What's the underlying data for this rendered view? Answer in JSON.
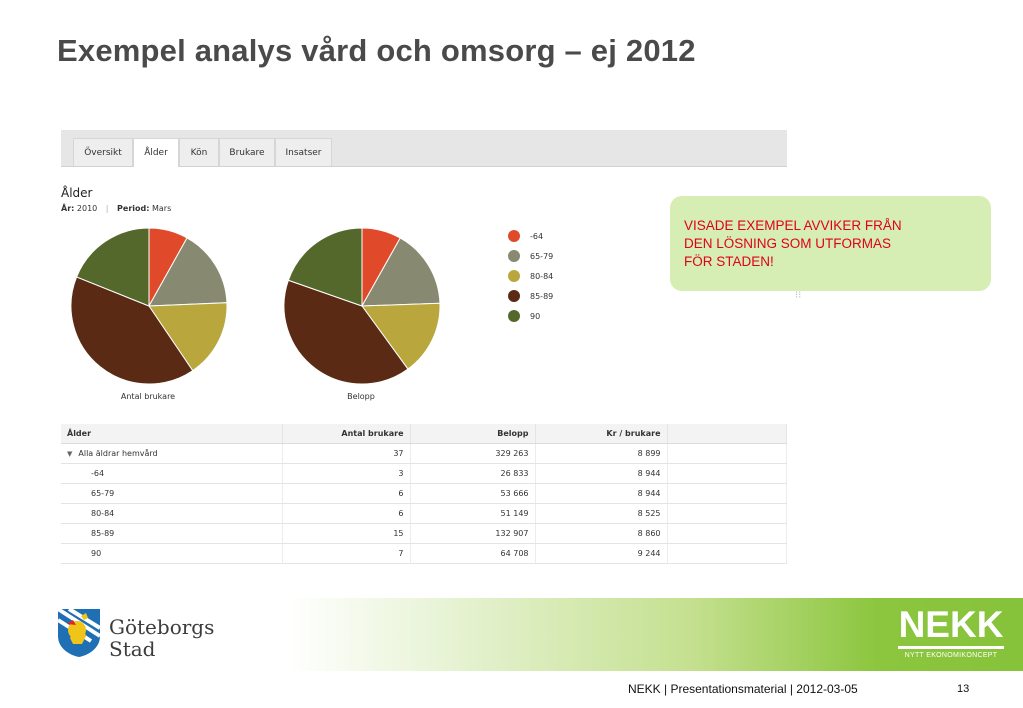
{
  "slide": {
    "title": "Exempel analys vård och omsorg – ej 2012"
  },
  "app": {
    "tabs": [
      {
        "label": "Översikt",
        "active": false
      },
      {
        "label": "Ålder",
        "active": true
      },
      {
        "label": "Kön",
        "active": false
      },
      {
        "label": "Brukare",
        "active": false
      },
      {
        "label": "Insatser",
        "active": false
      }
    ],
    "section_title": "Ålder",
    "meta": {
      "year_label": "År:",
      "year_value": "2010",
      "separator": "|",
      "period_label": "Period:",
      "period_value": "Mars"
    },
    "pie_captions": [
      "Antal brukare",
      "Belopp"
    ],
    "legend": [
      {
        "label": "-64",
        "color": "#e04a2a"
      },
      {
        "label": "65-79",
        "color": "#878a70"
      },
      {
        "label": "80-84",
        "color": "#b9a73d"
      },
      {
        "label": "85-89",
        "color": "#5a2a14"
      },
      {
        "label": "90",
        "color": "#55682b"
      }
    ],
    "table": {
      "headers": [
        "Ålder",
        "Antal brukare",
        "Belopp",
        "Kr / brukare"
      ],
      "total_row": {
        "label": "Alla äldrar hemvård",
        "antal": "37",
        "belopp": "329 263",
        "kr": "8 899"
      },
      "rows": [
        {
          "label": "-64",
          "antal": "3",
          "belopp": "26 833",
          "kr": "8 944"
        },
        {
          "label": "65-79",
          "antal": "6",
          "belopp": "53 666",
          "kr": "8 944"
        },
        {
          "label": "80-84",
          "antal": "6",
          "belopp": "51 149",
          "kr": "8 525"
        },
        {
          "label": "85-89",
          "antal": "15",
          "belopp": "132 907",
          "kr": "8 860"
        },
        {
          "label": "90",
          "antal": "7",
          "belopp": "64 708",
          "kr": "9 244"
        }
      ]
    }
  },
  "chart_data": [
    {
      "type": "pie",
      "title": "Antal brukare",
      "categories": [
        "-64",
        "65-79",
        "80-84",
        "85-89",
        "90"
      ],
      "values": [
        3,
        6,
        6,
        15,
        7
      ],
      "colors": [
        "#e04a2a",
        "#878a70",
        "#b9a73d",
        "#5a2a14",
        "#55682b"
      ],
      "legend_position": "right"
    },
    {
      "type": "pie",
      "title": "Belopp",
      "categories": [
        "-64",
        "65-79",
        "80-84",
        "85-89",
        "90"
      ],
      "values": [
        26833,
        53666,
        51149,
        132907,
        64708
      ],
      "colors": [
        "#e04a2a",
        "#878a70",
        "#b9a73d",
        "#5a2a14",
        "#55682b"
      ],
      "legend_position": "right"
    }
  ],
  "callout": {
    "lines": [
      "VISADE EXEMPEL AVVIKER FRÅN",
      "DEN LÖSNING SOM UTFORMAS",
      "FÖR STADEN!"
    ],
    "text_color": "#e0001a",
    "background": "#d6edb3"
  },
  "branding": {
    "city_logo_line1": "Göteborgs",
    "city_logo_line2": "Stad",
    "nekk_word": "NEKK",
    "nekk_sub": "NYTT EKONOMIKONCEPT",
    "accent_green": "#86c23a"
  },
  "footer": {
    "text": "NEKK |  Presentationsmaterial | 2012-03-05",
    "page": "13"
  }
}
